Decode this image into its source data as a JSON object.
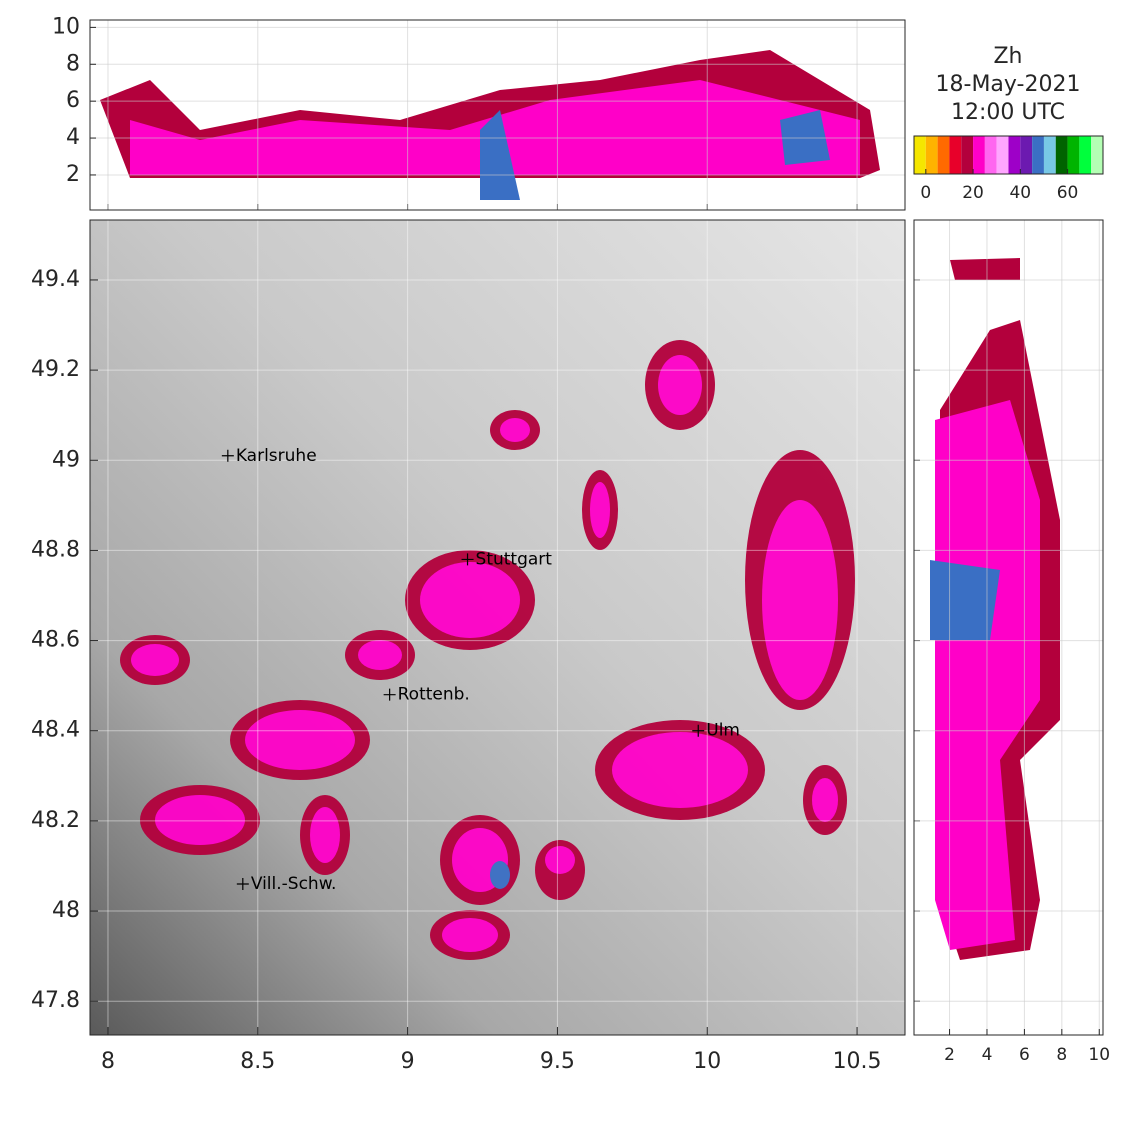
{
  "chart_data": [
    {
      "type": "heatmap",
      "xlim": [
        7.94,
        10.66
      ],
      "xticks": [
        8,
        8.5,
        9,
        9.5,
        10,
        10.5
      ],
      "ylim": [
        47.725,
        49.533
      ],
      "yticks": [
        47.8,
        48,
        48.2,
        48.4,
        48.6,
        48.8,
        49,
        49.2,
        49.4
      ],
      "grid": true,
      "annotations": [
        {
          "text": "Karlsruhe",
          "x": 8.4,
          "y": 49.01
        },
        {
          "text": "Stuttgart",
          "x": 9.2,
          "y": 48.78
        },
        {
          "text": "Rottenb.",
          "x": 8.94,
          "y": 48.48
        },
        {
          "text": "Ulm",
          "x": 9.97,
          "y": 48.4
        },
        {
          "text": "Vill.-Schw.",
          "x": 8.45,
          "y": 48.06
        }
      ]
    },
    {
      "type": "heatmap",
      "ylim": [
        0.1,
        10.4
      ],
      "yticks": [
        2,
        4,
        6,
        8,
        10
      ],
      "grid": true
    },
    {
      "type": "heatmap",
      "xlim": [
        0.1,
        10.2
      ],
      "xticks": [
        2,
        4,
        6,
        8,
        10
      ],
      "grid": true
    },
    {
      "type": "colorbar",
      "title": [
        "Zh",
        "18-May-2021",
        "12:00 UTC"
      ],
      "lim": [
        -5,
        75
      ],
      "ticks": [
        0,
        20,
        40,
        60
      ],
      "colors": [
        "#f5e600",
        "#ffb300",
        "#ff6a00",
        "#e8002a",
        "#b3003c",
        "#ff00c8",
        "#ff66f0",
        "#ffa6ff",
        "#9e00c8",
        "#6c1ab0",
        "#3a6fc4",
        "#78c8e6",
        "#006400",
        "#00b400",
        "#00ff3c",
        "#b4ffb4"
      ]
    }
  ]
}
